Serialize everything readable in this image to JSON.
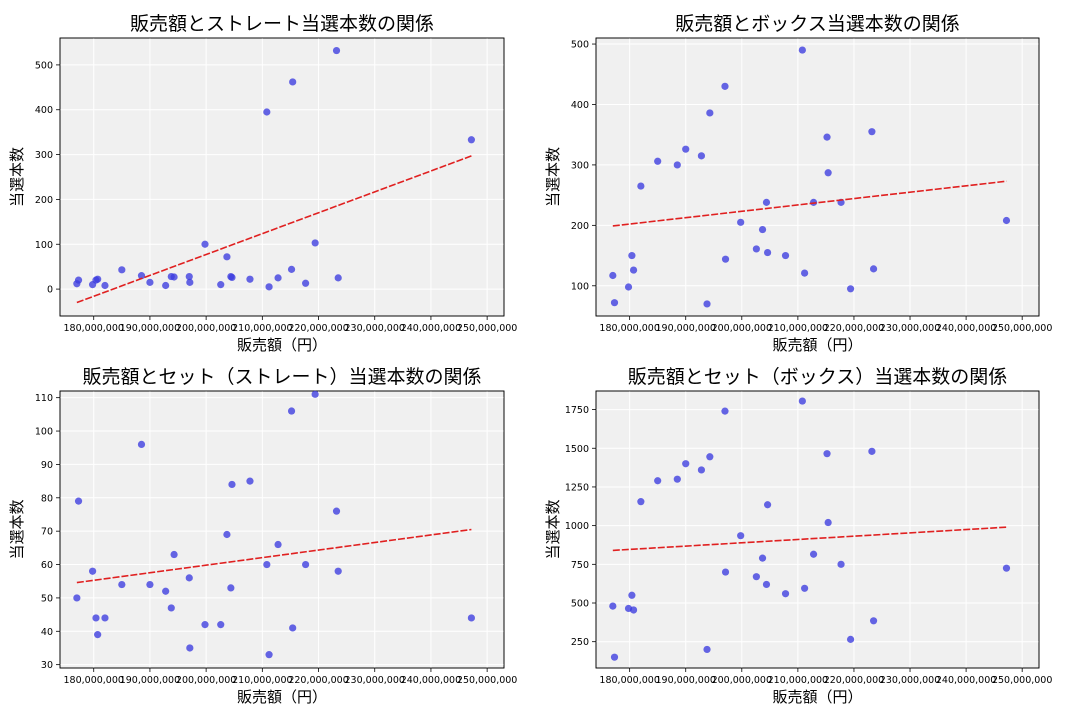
{
  "chart_data": [
    {
      "type": "scatter",
      "title": "販売額とストレート当選本数の関係",
      "xlabel": "販売額（円）",
      "ylabel": "当選本数",
      "xlim": [
        174000000,
        253000000
      ],
      "ylim": [
        -60,
        560
      ],
      "xticks": [
        180000000,
        190000000,
        200000000,
        210000000,
        220000000,
        230000000,
        240000000,
        250000000
      ],
      "xtick_labels": [
        "180,000,000",
        "190,000,000",
        "200,000,000",
        "210,000,000",
        "220,000,000",
        "230,000,000",
        "240,000,000",
        "250,000,000"
      ],
      "yticks": [
        0,
        100,
        200,
        300,
        400,
        500
      ],
      "ytick_labels": [
        "0",
        "100",
        "200",
        "300",
        "400",
        "500"
      ],
      "grid": true,
      "x": [
        177000000,
        177300000,
        179800000,
        180400000,
        180700000,
        182000000,
        185000000,
        188500000,
        190000000,
        192800000,
        193800000,
        194300000,
        197000000,
        197100000,
        199800000,
        202600000,
        203700000,
        204400000,
        204600000,
        207800000,
        210800000,
        211200000,
        212800000,
        215200000,
        215400000,
        217700000,
        219400000,
        223200000,
        223500000,
        247200000
      ],
      "y": [
        12,
        20,
        10,
        20,
        22,
        8,
        43,
        30,
        15,
        8,
        28,
        27,
        28,
        15,
        100,
        10,
        72,
        28,
        26,
        22,
        395,
        5,
        25,
        44,
        462,
        13,
        103,
        532,
        25,
        333
      ],
      "trendline": {
        "x": [
          177000000,
          247200000
        ],
        "y": [
          -30,
          297
        ]
      }
    },
    {
      "type": "scatter",
      "title": "販売額とボックス当選本数の関係",
      "xlabel": "販売額（円）",
      "ylabel": "当選本数",
      "xlim": [
        174000000,
        253000000
      ],
      "ylim": [
        50,
        510
      ],
      "xticks": [
        180000000,
        190000000,
        200000000,
        210000000,
        220000000,
        230000000,
        240000000,
        250000000
      ],
      "xtick_labels": [
        "180,000,000",
        "190,000,000",
        "200,000,000",
        "210,000,000",
        "220,000,000",
        "230,000,000",
        "240,000,000",
        "250,000,000"
      ],
      "yticks": [
        100,
        200,
        300,
        400,
        500
      ],
      "ytick_labels": [
        "100",
        "200",
        "300",
        "400",
        "500"
      ],
      "grid": true,
      "x": [
        177000000,
        177300000,
        179800000,
        180400000,
        180700000,
        182000000,
        185000000,
        188500000,
        190000000,
        192800000,
        193800000,
        194300000,
        197000000,
        197100000,
        199800000,
        202600000,
        203700000,
        204400000,
        204600000,
        207800000,
        210800000,
        211200000,
        212800000,
        215200000,
        215400000,
        217700000,
        219400000,
        223200000,
        223500000,
        247200000
      ],
      "y": [
        117,
        72,
        98,
        150,
        126,
        265,
        306,
        300,
        326,
        315,
        70,
        386,
        430,
        144,
        205,
        161,
        193,
        238,
        155,
        150,
        490,
        121,
        238,
        346,
        287,
        238,
        95,
        355,
        128,
        208
      ],
      "trendline": {
        "x": [
          177000000,
          247200000
        ],
        "y": [
          199,
          273
        ]
      }
    },
    {
      "type": "scatter",
      "title": "販売額とセット（ストレート）当選本数の関係",
      "xlabel": "販売額（円）",
      "ylabel": "当選本数",
      "xlim": [
        174000000,
        253000000
      ],
      "ylim": [
        29,
        112
      ],
      "xticks": [
        180000000,
        190000000,
        200000000,
        210000000,
        220000000,
        230000000,
        240000000,
        250000000
      ],
      "xtick_labels": [
        "180,000,000",
        "190,000,000",
        "200,000,000",
        "210,000,000",
        "220,000,000",
        "230,000,000",
        "240,000,000",
        "250,000,000"
      ],
      "yticks": [
        30,
        40,
        50,
        60,
        70,
        80,
        90,
        100,
        110
      ],
      "ytick_labels": [
        "30",
        "40",
        "50",
        "60",
        "70",
        "80",
        "90",
        "100",
        "110"
      ],
      "grid": true,
      "x": [
        177000000,
        177300000,
        179800000,
        180400000,
        180700000,
        182000000,
        185000000,
        188500000,
        190000000,
        192800000,
        193800000,
        194300000,
        197000000,
        197100000,
        199800000,
        202600000,
        203700000,
        204400000,
        204600000,
        207800000,
        210800000,
        211200000,
        212800000,
        215200000,
        215400000,
        217700000,
        219400000,
        223200000,
        223500000,
        247200000
      ],
      "y": [
        50,
        79,
        58,
        44,
        39,
        44,
        54,
        96,
        54,
        52,
        47,
        63,
        56,
        35,
        42,
        42,
        69,
        53,
        84,
        85,
        60,
        33,
        66,
        106,
        41,
        60,
        111,
        76,
        58,
        44
      ],
      "trendline": {
        "x": [
          177000000,
          247200000
        ],
        "y": [
          54.6,
          70.5
        ]
      }
    },
    {
      "type": "scatter",
      "title": "販売額とセット（ボックス）当選本数の関係",
      "xlabel": "販売額（円）",
      "ylabel": "当選本数",
      "xlim": [
        174000000,
        253000000
      ],
      "ylim": [
        80,
        1870
      ],
      "xticks": [
        180000000,
        190000000,
        200000000,
        210000000,
        220000000,
        230000000,
        240000000,
        250000000
      ],
      "xtick_labels": [
        "180,000,000",
        "190,000,000",
        "200,000,000",
        "210,000,000",
        "220,000,000",
        "230,000,000",
        "240,000,000",
        "250,000,000"
      ],
      "yticks": [
        250,
        500,
        750,
        1000,
        1250,
        1500,
        1750
      ],
      "ytick_labels": [
        "250",
        "500",
        "750",
        "1000",
        "1250",
        "1500",
        "1750"
      ],
      "grid": true,
      "x": [
        177000000,
        177300000,
        179800000,
        180400000,
        180700000,
        182000000,
        185000000,
        188500000,
        190000000,
        192800000,
        193800000,
        194300000,
        197000000,
        197100000,
        199800000,
        202600000,
        203700000,
        204400000,
        204600000,
        207800000,
        210800000,
        211200000,
        212800000,
        215200000,
        215400000,
        217700000,
        219400000,
        223200000,
        223500000,
        247200000
      ],
      "y": [
        480,
        150,
        465,
        550,
        455,
        1155,
        1290,
        1300,
        1400,
        1360,
        200,
        1445,
        1740,
        700,
        935,
        670,
        790,
        620,
        1135,
        560,
        1805,
        595,
        815,
        1465,
        1020,
        750,
        265,
        1480,
        385,
        725
      ],
      "trendline": {
        "x": [
          177000000,
          247200000
        ],
        "y": [
          840,
          990
        ]
      }
    }
  ]
}
